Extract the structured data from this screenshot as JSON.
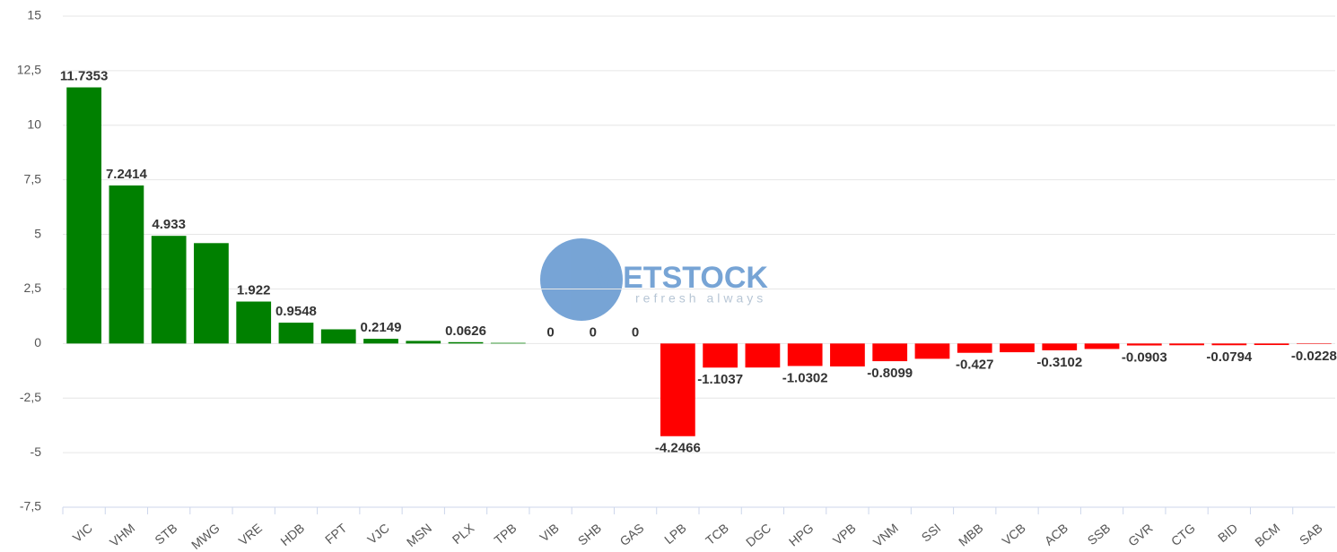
{
  "chart_data": {
    "type": "bar",
    "categories": [
      "VIC",
      "VHM",
      "STB",
      "MWG",
      "VRE",
      "HDB",
      "FPT",
      "VJC",
      "MSN",
      "PLX",
      "TPB",
      "VIB",
      "SHB",
      "GAS",
      "LPB",
      "TCB",
      "DGC",
      "HPG",
      "VPB",
      "VNM",
      "SSI",
      "MBB",
      "VCB",
      "ACB",
      "SSB",
      "GVR",
      "CTG",
      "BID",
      "BCM",
      "SAB"
    ],
    "values": [
      11.7353,
      7.2414,
      4.933,
      4.6,
      1.922,
      0.9548,
      0.65,
      0.2149,
      0.12,
      0.0626,
      0.03,
      0,
      0,
      0,
      -4.2466,
      -1.1037,
      -1.1,
      -1.0302,
      -1.05,
      -0.8099,
      -0.7,
      -0.427,
      -0.4,
      -0.3102,
      -0.25,
      -0.0903,
      -0.08,
      -0.0794,
      -0.07,
      -0.0228
    ],
    "value_labels": [
      "11.7353",
      "7.2414",
      "4.933",
      null,
      "1.922",
      "0.9548",
      null,
      "0.2149",
      null,
      "0.0626",
      null,
      "0",
      "0",
      "0",
      "-4.2466",
      "-1.1037",
      null,
      "-1.0302",
      null,
      "-0.8099",
      null,
      "-0.427",
      null,
      "-0.3102",
      null,
      "-0.0903",
      null,
      "-0.0794",
      null,
      "-0.0228"
    ],
    "positive_color": "#008000",
    "negative_color": "#ff0000",
    "ylim": [
      -7.5,
      15
    ],
    "yticks": [
      {
        "value": -7.5,
        "label": "-7,5"
      },
      -5,
      {
        "value": -2.5,
        "label": "-2,5"
      },
      0,
      {
        "value": 2.5,
        "label": "2,5"
      },
      5,
      {
        "value": 7.5,
        "label": "7,5"
      },
      10,
      {
        "value": 12.5,
        "label": "12,5"
      },
      15
    ],
    "grid": true,
    "watermark": {
      "brand": "VIETSTOCK",
      "tagline": "refresh always"
    }
  }
}
